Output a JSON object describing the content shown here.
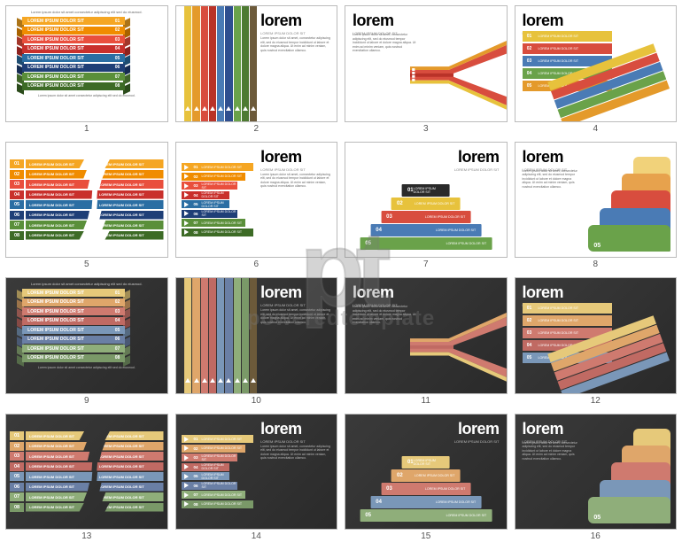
{
  "watermark": {
    "logo": "pt",
    "sub": "poweredtemplate"
  },
  "palette": {
    "set1": [
      "#f5a623",
      "#f08c00",
      "#e94f3d",
      "#c9302c",
      "#2b6ea3",
      "#1f3f77",
      "#5a8f3a",
      "#3d6b26"
    ],
    "set2": [
      "#e7c23c",
      "#e49a2b",
      "#d84d3e",
      "#b93228",
      "#4a7bb5",
      "#2f4f8f",
      "#6aa24a",
      "#4d7a32",
      "#6c5a3a"
    ],
    "set3": [
      "#e7c23c",
      "#d84d3e",
      "#4a7bb5",
      "#6aa24a",
      "#e49a2b"
    ],
    "set4": [
      "#f1d27a",
      "#e7a24d",
      "#d84d3e",
      "#4a7bb5",
      "#6aa24a"
    ],
    "muted": [
      "#e6c97a",
      "#dfa66a",
      "#cf7a6f",
      "#c06a63",
      "#7a97b8",
      "#6a7fa5",
      "#8fae7a",
      "#7a9968"
    ]
  },
  "labels": {
    "lorem": "lorem",
    "sub": "LOREM IPSUM DOLOR SIT",
    "bar": "LOREM IPSUM DOLOR SIT",
    "para": "Lorem ipsum dolor sit amet, consectetur adipiscing elit, sed do eiusmod tempor incididunt ut labore et dolore magna aliqua. Ut enim ad minim veniam, quis nostrud exercitation ullamco.",
    "short": "Lorem ipsum dolor sit amet consectetur adipiscing elit sed do eiusmod."
  },
  "nums8": [
    "01",
    "02",
    "03",
    "04",
    "05",
    "06",
    "07",
    "08"
  ],
  "nums5": [
    "01",
    "02",
    "03",
    "04",
    "05"
  ],
  "slideNums": [
    "1",
    "2",
    "3",
    "4",
    "5",
    "6",
    "7",
    "8",
    "9",
    "10",
    "11",
    "12",
    "13",
    "14",
    "15",
    "16"
  ],
  "pyramid_widths": [
    36,
    52,
    68,
    84,
    100
  ],
  "cascade_widths": [
    40,
    52,
    64,
    76,
    88
  ]
}
